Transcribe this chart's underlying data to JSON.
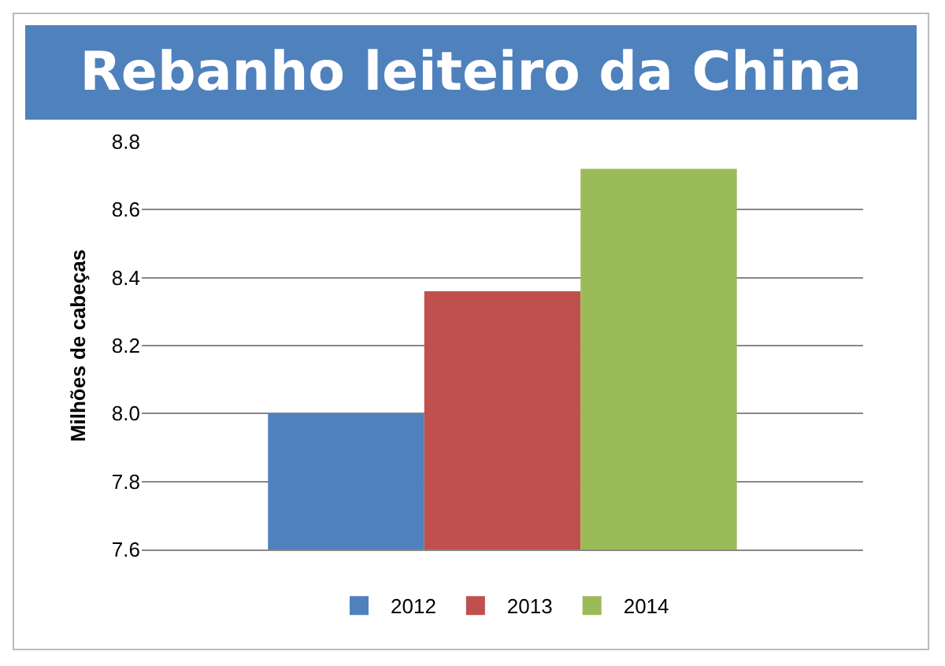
{
  "chart_data": {
    "type": "bar",
    "title": "Rebanho leiteiro da China",
    "ylabel": "Milhões de cabeças",
    "categories": [
      null
    ],
    "series": [
      {
        "name": "2012",
        "color": "#4f81bd",
        "values": [
          8.0
        ]
      },
      {
        "name": "2013",
        "color": "#c0504d",
        "values": [
          8.36
        ]
      },
      {
        "name": "2014",
        "color": "#9bbb59",
        "values": [
          8.72
        ]
      }
    ],
    "ylim": [
      7.6,
      8.8
    ],
    "yticks": [
      {
        "value": 7.6,
        "label": "7.6"
      },
      {
        "value": 7.8,
        "label": "7.8"
      },
      {
        "value": 8.0,
        "label": "8.0"
      },
      {
        "value": 8.2,
        "label": "8.2"
      },
      {
        "value": 8.4,
        "label": "8.4"
      },
      {
        "value": 8.6,
        "label": "8.6"
      },
      {
        "value": 8.8,
        "label": "8.8"
      }
    ],
    "grid": "y",
    "legend": "bottom"
  }
}
